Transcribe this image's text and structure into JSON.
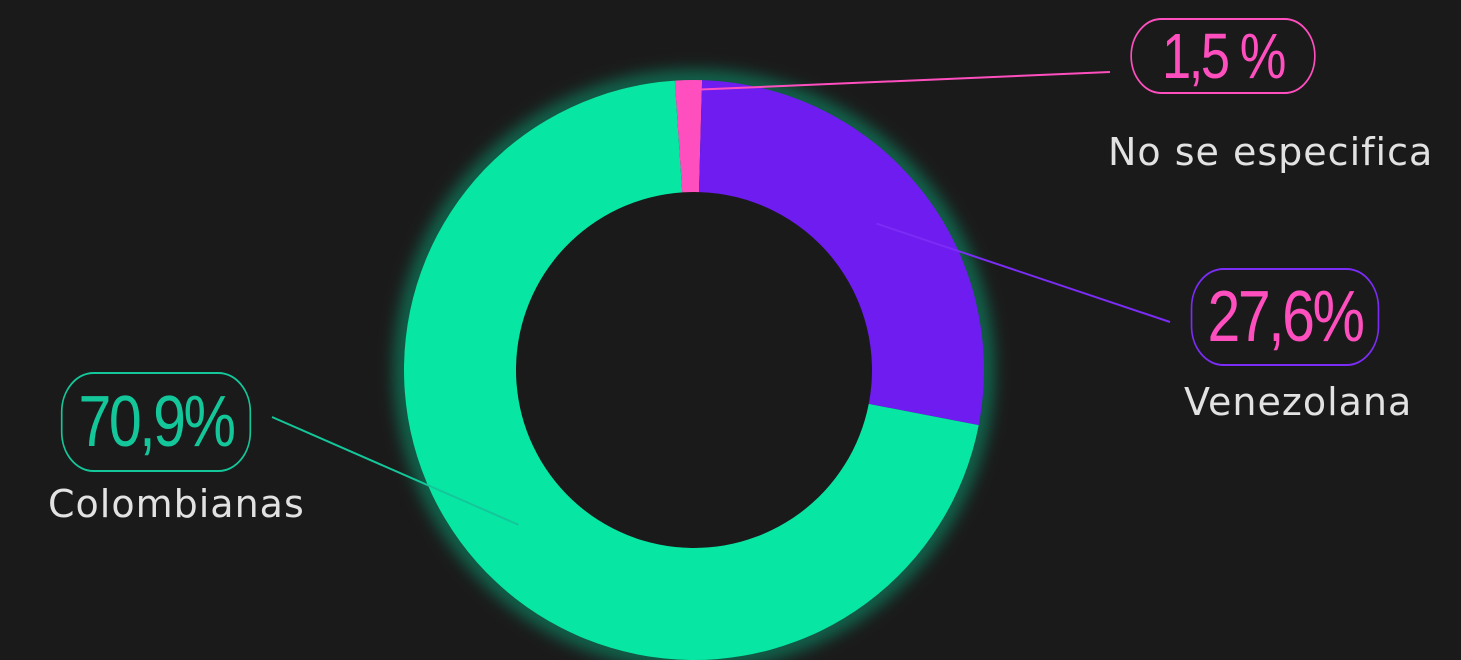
{
  "chart_data": {
    "type": "pie",
    "donut": true,
    "slices": [
      {
        "label": "No se especifica",
        "value": 1.5,
        "value_label": "1,5 %",
        "color": "#ff4fbf",
        "badge_text_color": "#ff4fbf",
        "badge_border_color": "#ff4fbf"
      },
      {
        "label": "Venezolana",
        "value": 27.6,
        "value_label": "27,6%",
        "color": "#6e1cf0",
        "badge_text_color": "#ff4fbf",
        "badge_border_color": "#7b2cf5"
      },
      {
        "label": "Colombianas",
        "value": 70.9,
        "value_label": "70,9%",
        "color": "#08e6a4",
        "badge_text_color": "#14c79a",
        "badge_border_color": "#14c79a"
      }
    ]
  },
  "theme": {
    "background": "#1a1a1a",
    "label_color": "#e2e2e2"
  }
}
